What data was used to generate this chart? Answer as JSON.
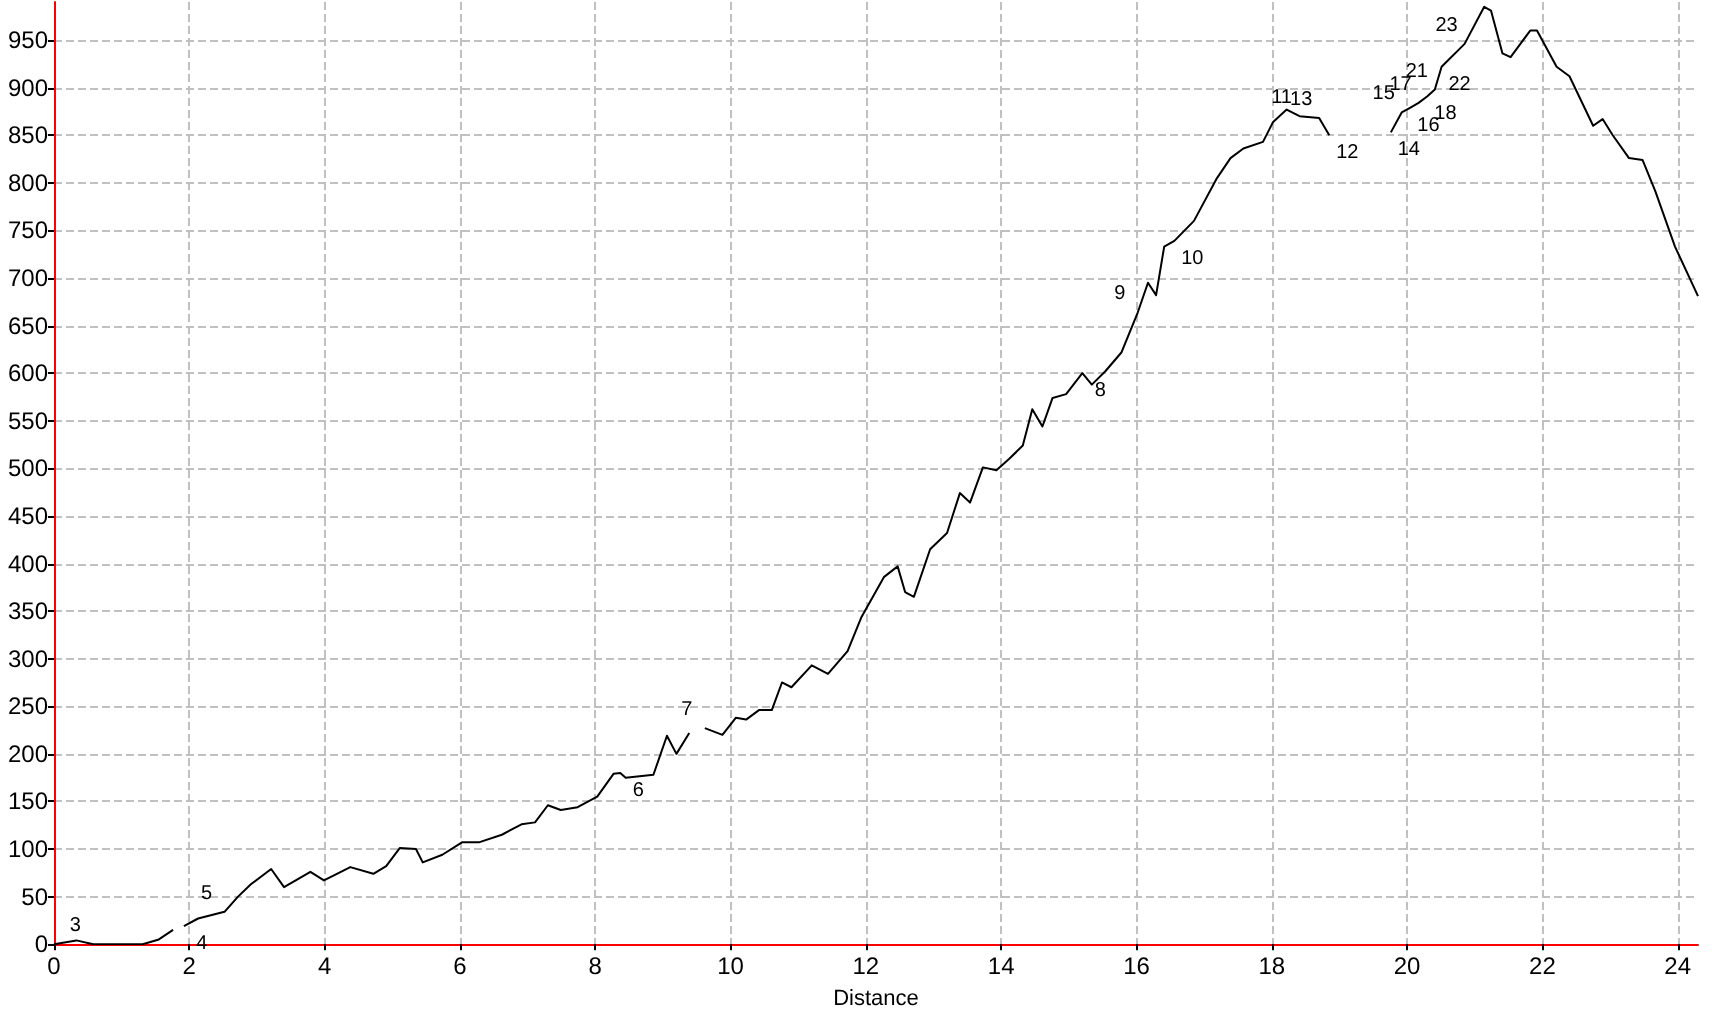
{
  "chart_data": {
    "type": "line",
    "xlabel": "Distance",
    "x": [
      0,
      0.33,
      0.58,
      0.87,
      1.11,
      1.31,
      1.55,
      1.76,
      1.85,
      1.92,
      2.13,
      2.52,
      2.72,
      2.91,
      3.21,
      3.4,
      3.79,
      3.99,
      4.38,
      4.72,
      4.91,
      5.11,
      5.35,
      5.45,
      5.74,
      6.03,
      6.28,
      6.62,
      6.91,
      7.11,
      7.3,
      7.49,
      7.74,
      8.03,
      8.27,
      8.37,
      8.45,
      8.86,
      9.06,
      9.2,
      9.39,
      9.5,
      9.62,
      9.88,
      10.08,
      10.23,
      10.42,
      10.61,
      10.76,
      10.9,
      11.2,
      11.44,
      11.73,
      11.93,
      12.27,
      12.47,
      12.58,
      12.71,
      12.95,
      13.2,
      13.39,
      13.54,
      13.73,
      13.93,
      14.12,
      14.32,
      14.46,
      14.61,
      14.76,
      14.96,
      15.2,
      15.34,
      15.54,
      15.78,
      16.02,
      16.17,
      16.29,
      16.41,
      16.56,
      16.85,
      17.19,
      17.39,
      17.58,
      17.87,
      18.02,
      18.22,
      18.41,
      18.7,
      18.85,
      19.3,
      19.76,
      19.92,
      20.05,
      20.17,
      20.3,
      20.41,
      20.51,
      20.85,
      21.14,
      21.24,
      21.41,
      21.53,
      21.82,
      21.92,
      22.21,
      22.4,
      22.75,
      22.89,
      23.04,
      23.28,
      23.48,
      23.67,
      23.96,
      24.3
    ],
    "series": [
      {
        "color": "#000000",
        "values": [
          0,
          4,
          0,
          0,
          0,
          0,
          5,
          15,
          null,
          19,
          27,
          34,
          50,
          63,
          79,
          60,
          76,
          67,
          81,
          74,
          82,
          101,
          100,
          86,
          94,
          107,
          107,
          115,
          126,
          128,
          146,
          141,
          144,
          155,
          179,
          180,
          175,
          178,
          219,
          200,
          222,
          null,
          227,
          220,
          238,
          236,
          246,
          246,
          275,
          270,
          293,
          284,
          308,
          343,
          386,
          397,
          370,
          365,
          415,
          432,
          474,
          464,
          501,
          498,
          510,
          524,
          562,
          544,
          574,
          578,
          600,
          588,
          602,
          622,
          664,
          695,
          682,
          733,
          739,
          760,
          805,
          826,
          836,
          843,
          864,
          877,
          870,
          868,
          850,
          null,
          853,
          874,
          879,
          884,
          891,
          898,
          922,
          946,
          985,
          981,
          936,
          932,
          960,
          960,
          922,
          912,
          860,
          867,
          850,
          826,
          824,
          791,
          733,
          681
        ]
      }
    ],
    "xlim": [
      0,
      24.3
    ],
    "ylim": [
      0,
      990
    ],
    "xticks": [
      0,
      2,
      4,
      6,
      8,
      10,
      12,
      14,
      16,
      18,
      20,
      22,
      24
    ],
    "yticks": [
      0,
      50,
      100,
      150,
      200,
      250,
      300,
      350,
      400,
      450,
      500,
      550,
      600,
      650,
      700,
      750,
      800,
      850,
      900,
      950
    ],
    "grid": true,
    "marker": "none",
    "line_style": "solid",
    "annotations": [
      {
        "text": "3",
        "x": 0.58,
        "y": 0
      },
      {
        "text": "4",
        "x": 1.92,
        "y": 19
      },
      {
        "text": "5",
        "x": 2.52,
        "y": 34
      },
      {
        "text": "6",
        "x": 8.37,
        "y": 180
      },
      {
        "text": "7",
        "x": 9.62,
        "y": 227
      },
      {
        "text": "8",
        "x": 15.2,
        "y": 600
      },
      {
        "text": "9",
        "x": 16.02,
        "y": 664
      },
      {
        "text": "10",
        "x": 16.56,
        "y": 739
      },
      {
        "text": "11",
        "x": 18.41,
        "y": 870
      },
      {
        "text": "12",
        "x": 18.85,
        "y": 850
      },
      {
        "text": "13",
        "x": 18.7,
        "y": 868
      },
      {
        "text": "14",
        "x": 19.76,
        "y": 853
      },
      {
        "text": "15",
        "x": 19.92,
        "y": 874
      },
      {
        "text": "16",
        "x": 20.05,
        "y": 879
      },
      {
        "text": "17",
        "x": 20.17,
        "y": 884
      },
      {
        "text": "18",
        "x": 20.3,
        "y": 891
      },
      {
        "text": "21",
        "x": 20.41,
        "y": 898
      },
      {
        "text": "22",
        "x": 20.51,
        "y": 922
      },
      {
        "text": "23",
        "x": 20.85,
        "y": 946
      }
    ]
  }
}
